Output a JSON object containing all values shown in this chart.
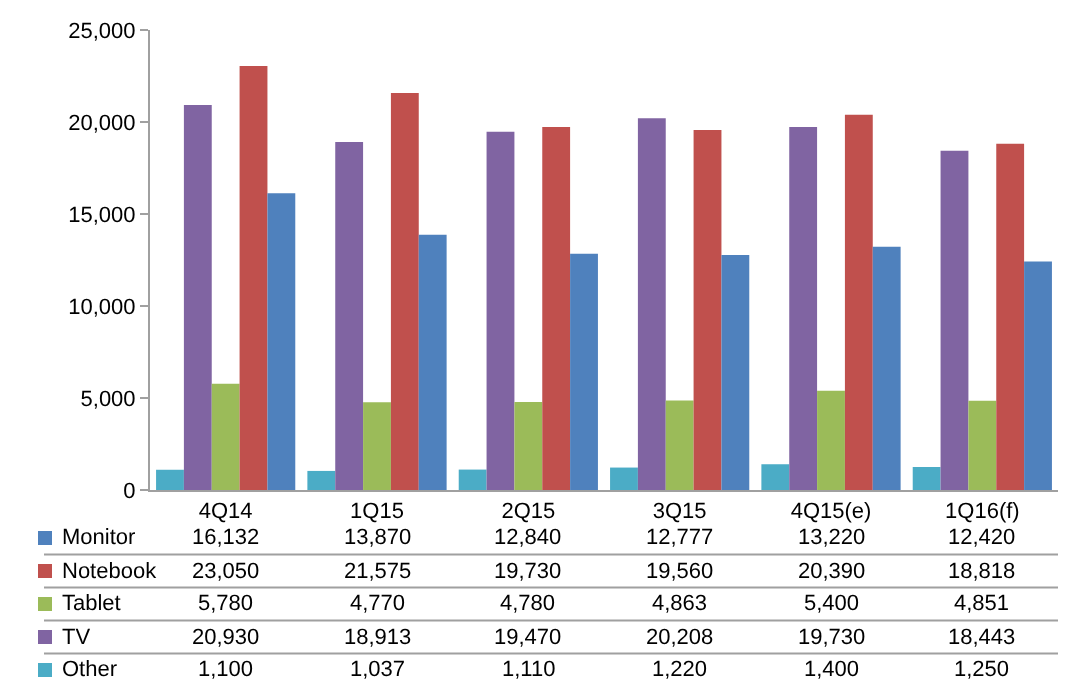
{
  "chart_data": {
    "type": "bar",
    "categories": [
      "4Q14",
      "1Q15",
      "2Q15",
      "3Q15",
      "4Q15(e)",
      "1Q16(f)"
    ],
    "series": [
      {
        "name": "Monitor",
        "color": "#4f81bd",
        "values": [
          16132,
          13870,
          12840,
          12777,
          13220,
          12420
        ],
        "value_labels": [
          "16,132",
          "13,870",
          "12,840",
          "12,777",
          "13,220",
          "12,420"
        ]
      },
      {
        "name": "Notebook",
        "color": "#c0504d",
        "values": [
          23050,
          21575,
          19730,
          19560,
          20390,
          18818
        ],
        "value_labels": [
          "23,050",
          "21,575",
          "19,730",
          "19,560",
          "20,390",
          "18,818"
        ]
      },
      {
        "name": "Tablet",
        "color": "#9bbb59",
        "values": [
          5780,
          4770,
          4780,
          4863,
          5400,
          4851
        ],
        "value_labels": [
          "5,780",
          "4,770",
          "4,780",
          "4,863",
          "5,400",
          "4,851"
        ]
      },
      {
        "name": "TV",
        "color": "#8064a2",
        "values": [
          20930,
          18913,
          19470,
          20208,
          19730,
          18443
        ],
        "value_labels": [
          "20,930",
          "18,913",
          "19,470",
          "20,208",
          "19,730",
          "18,443"
        ]
      },
      {
        "name": "Other",
        "color": "#4bacc6",
        "values": [
          1100,
          1037,
          1110,
          1220,
          1400,
          1250
        ],
        "value_labels": [
          "1,100",
          "1,037",
          "1,110",
          "1,220",
          "1,400",
          "1,250"
        ]
      }
    ],
    "ylim": [
      0,
      25000
    ],
    "yticks": [
      {
        "value": 0,
        "label": "0"
      },
      {
        "value": 5000,
        "label": "5,000"
      },
      {
        "value": 10000,
        "label": "10,000"
      },
      {
        "value": 15000,
        "label": "15,000"
      },
      {
        "value": 20000,
        "label": "20,000"
      },
      {
        "value": 25000,
        "label": "25,000"
      }
    ],
    "grid": false,
    "legend": "bottom left"
  }
}
